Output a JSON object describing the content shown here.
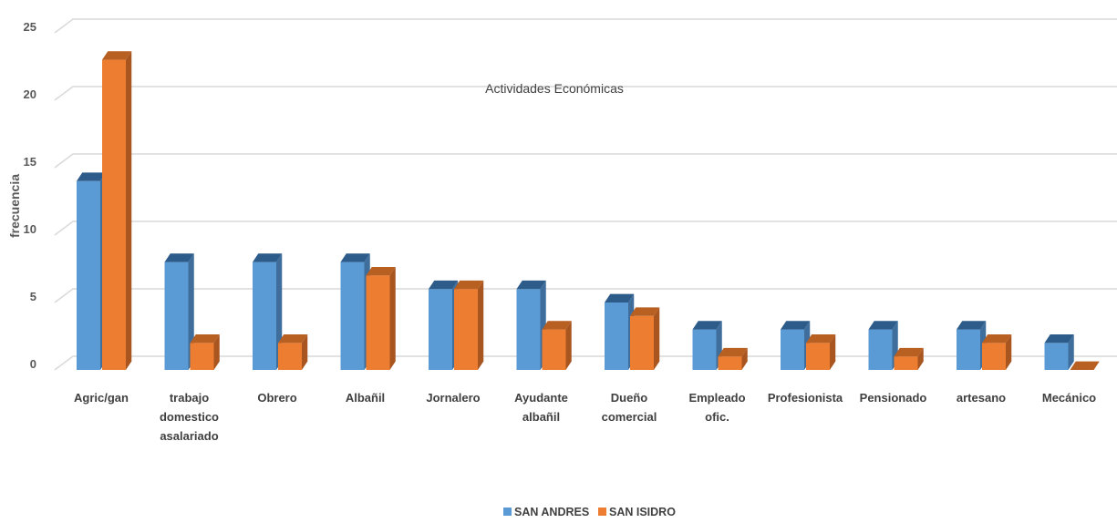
{
  "chart_data": {
    "type": "bar",
    "title": "Actividades Económicas",
    "xlabel": "",
    "ylabel": "frecuencia",
    "ylim": [
      0,
      25
    ],
    "yticks": [
      0,
      5,
      10,
      15,
      20,
      25
    ],
    "grid": true,
    "legend_position": "bottom",
    "categories": [
      [
        "Agric/gan"
      ],
      [
        "trabajo",
        "domestico",
        "asalariado"
      ],
      [
        "Obrero"
      ],
      [
        "Albañil"
      ],
      [
        "Jornalero"
      ],
      [
        "Ayudante",
        "albañil"
      ],
      [
        "Dueño",
        "comercial"
      ],
      [
        "Empleado",
        "ofic."
      ],
      [
        "Profesionista"
      ],
      [
        "Pensionado"
      ],
      [
        "artesano"
      ],
      [
        "Mecánico"
      ]
    ],
    "series": [
      {
        "name": "SAN ANDRES",
        "color": "#5B9BD5",
        "side_color": "#3F6E9C",
        "top_color": "#2E5C8A",
        "values": [
          14,
          8,
          8,
          8,
          6,
          6,
          5,
          3,
          3,
          3,
          3,
          2
        ]
      },
      {
        "name": "SAN ISIDRO",
        "color": "#ED7D31",
        "side_color": "#A85520",
        "top_color": "#B85F22",
        "values": [
          23,
          2,
          2,
          7,
          6,
          3,
          4,
          1,
          2,
          1,
          2,
          0
        ]
      }
    ]
  }
}
